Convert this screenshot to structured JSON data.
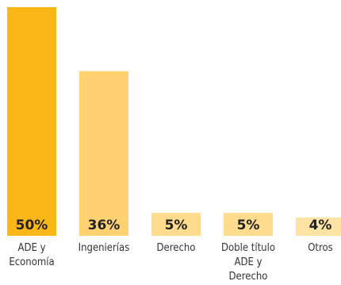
{
  "chart_data": {
    "type": "bar",
    "categories": [
      [
        "ADE y",
        "Economía"
      ],
      [
        "Ingenierías"
      ],
      [
        "Derecho"
      ],
      [
        "Doble título",
        "ADE y",
        "Derecho"
      ],
      [
        "Otros"
      ]
    ],
    "values": [
      50,
      36,
      5,
      5,
      4
    ],
    "value_labels": [
      "50%",
      "36%",
      "5%",
      "5%",
      "4%"
    ],
    "ylim": [
      0,
      50
    ],
    "grid": false,
    "colors": [
      "#fbb717",
      "#ffd171",
      "#ffdb8d",
      "#ffdb8d",
      "#ffe3a5"
    ]
  }
}
